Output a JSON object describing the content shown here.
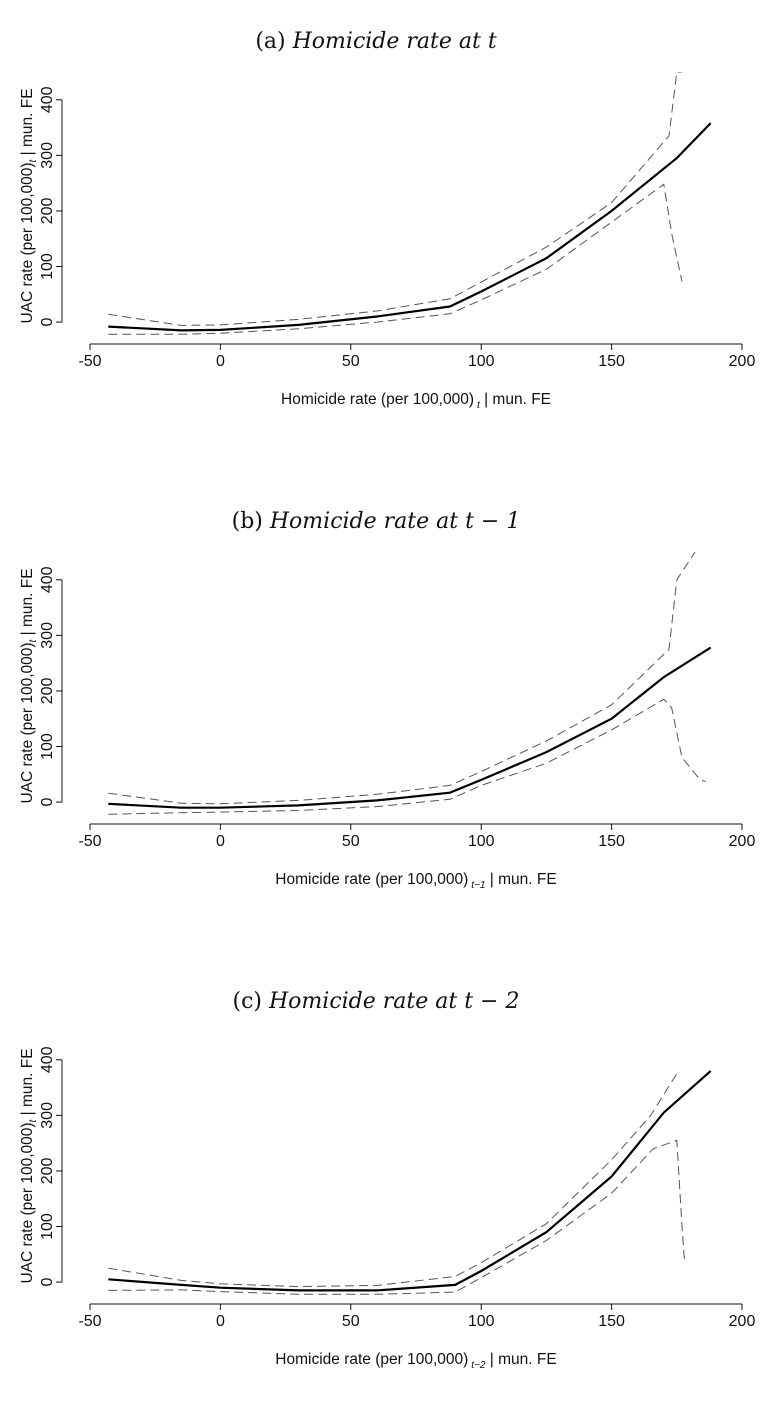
{
  "panels": [
    {
      "title_label": "(a)",
      "title_text": "Homicide rate at t",
      "ylabel": "UAC rate (per 100,000)",
      "ylabel_sub": "t",
      "ylabel_tail": "| mun. FE",
      "xlabel": "Homicide rate (per 100,000)",
      "xlabel_sub": "t",
      "xlabel_tail": "| mun. FE"
    },
    {
      "title_label": "(b)",
      "title_text": "Homicide rate at t − 1",
      "ylabel": "UAC rate (per 100,000)",
      "ylabel_sub": "t",
      "ylabel_tail": "| mun. FE",
      "xlabel": "Homicide rate (per 100,000)",
      "xlabel_sub": "t−1",
      "xlabel_tail": "| mun. FE"
    },
    {
      "title_label": "(c)",
      "title_text": "Homicide rate at t − 2",
      "ylabel": "UAC rate (per 100,000)",
      "ylabel_sub": "t",
      "ylabel_tail": "| mun. FE",
      "xlabel": "Homicide rate (per 100,000)",
      "xlabel_sub": "t−2",
      "xlabel_tail": "| mun. FE"
    }
  ],
  "chart_data": [
    {
      "type": "line",
      "xlim": [
        -50,
        200
      ],
      "ylim": [
        -25,
        450
      ],
      "xticks": [
        -50,
        0,
        50,
        100,
        150,
        200
      ],
      "yticks": [
        0,
        100,
        200,
        300,
        400
      ],
      "series": [
        {
          "style": "solid",
          "x": [
            -43,
            -15,
            0,
            30,
            60,
            88,
            100,
            125,
            150,
            175,
            188
          ],
          "y": [
            -8,
            -15,
            -14,
            -5,
            10,
            28,
            55,
            115,
            200,
            295,
            358
          ]
        },
        {
          "style": "dashed",
          "x": [
            -43,
            -15,
            0,
            30,
            60,
            88,
            100,
            125,
            150,
            172,
            175,
            177
          ],
          "y": [
            14,
            -6,
            -5,
            5,
            20,
            42,
            72,
            135,
            215,
            335,
            450,
            450
          ]
        },
        {
          "style": "dashed",
          "x": [
            -43,
            -15,
            0,
            30,
            60,
            88,
            100,
            125,
            150,
            170,
            173,
            177
          ],
          "y": [
            -22,
            -22,
            -20,
            -12,
            0,
            15,
            40,
            95,
            180,
            248,
            160,
            73
          ]
        }
      ]
    },
    {
      "type": "line",
      "xlim": [
        -50,
        200
      ],
      "ylim": [
        -25,
        450
      ],
      "xticks": [
        -50,
        0,
        50,
        100,
        150,
        200
      ],
      "yticks": [
        0,
        100,
        200,
        300,
        400
      ],
      "series": [
        {
          "style": "solid",
          "x": [
            -43,
            -15,
            0,
            30,
            60,
            88,
            100,
            125,
            150,
            170,
            188
          ],
          "y": [
            -3,
            -10,
            -10,
            -6,
            3,
            17,
            40,
            90,
            150,
            225,
            278
          ]
        },
        {
          "style": "dashed",
          "x": [
            -43,
            -15,
            0,
            30,
            60,
            88,
            100,
            125,
            150,
            172,
            175,
            182
          ],
          "y": [
            16,
            -2,
            -3,
            3,
            14,
            30,
            55,
            110,
            175,
            275,
            400,
            450
          ]
        },
        {
          "style": "dashed",
          "x": [
            -43,
            -15,
            0,
            30,
            60,
            88,
            100,
            125,
            150,
            170,
            173,
            177,
            184,
            186
          ],
          "y": [
            -22,
            -19,
            -18,
            -15,
            -8,
            5,
            30,
            70,
            130,
            185,
            170,
            80,
            40,
            37
          ]
        }
      ]
    },
    {
      "type": "line",
      "xlim": [
        -50,
        200
      ],
      "ylim": [
        -25,
        450
      ],
      "xticks": [
        -50,
        0,
        50,
        100,
        150,
        200
      ],
      "yticks": [
        0,
        100,
        200,
        300,
        400
      ],
      "series": [
        {
          "style": "solid",
          "x": [
            -43,
            -15,
            0,
            30,
            60,
            90,
            100,
            125,
            150,
            170,
            188
          ],
          "y": [
            5,
            -5,
            -10,
            -15,
            -15,
            -5,
            20,
            90,
            190,
            305,
            380
          ]
        },
        {
          "style": "dashed",
          "x": [
            -43,
            -15,
            0,
            30,
            60,
            90,
            100,
            125,
            150,
            165,
            175
          ],
          "y": [
            25,
            3,
            -3,
            -8,
            -6,
            10,
            35,
            105,
            220,
            300,
            375
          ]
        },
        {
          "style": "dashed",
          "x": [
            -43,
            -15,
            0,
            30,
            60,
            90,
            100,
            125,
            150,
            166,
            175,
            177,
            178
          ],
          "y": [
            -15,
            -14,
            -17,
            -22,
            -22,
            -18,
            8,
            75,
            160,
            240,
            255,
            100,
            35
          ]
        }
      ]
    }
  ]
}
